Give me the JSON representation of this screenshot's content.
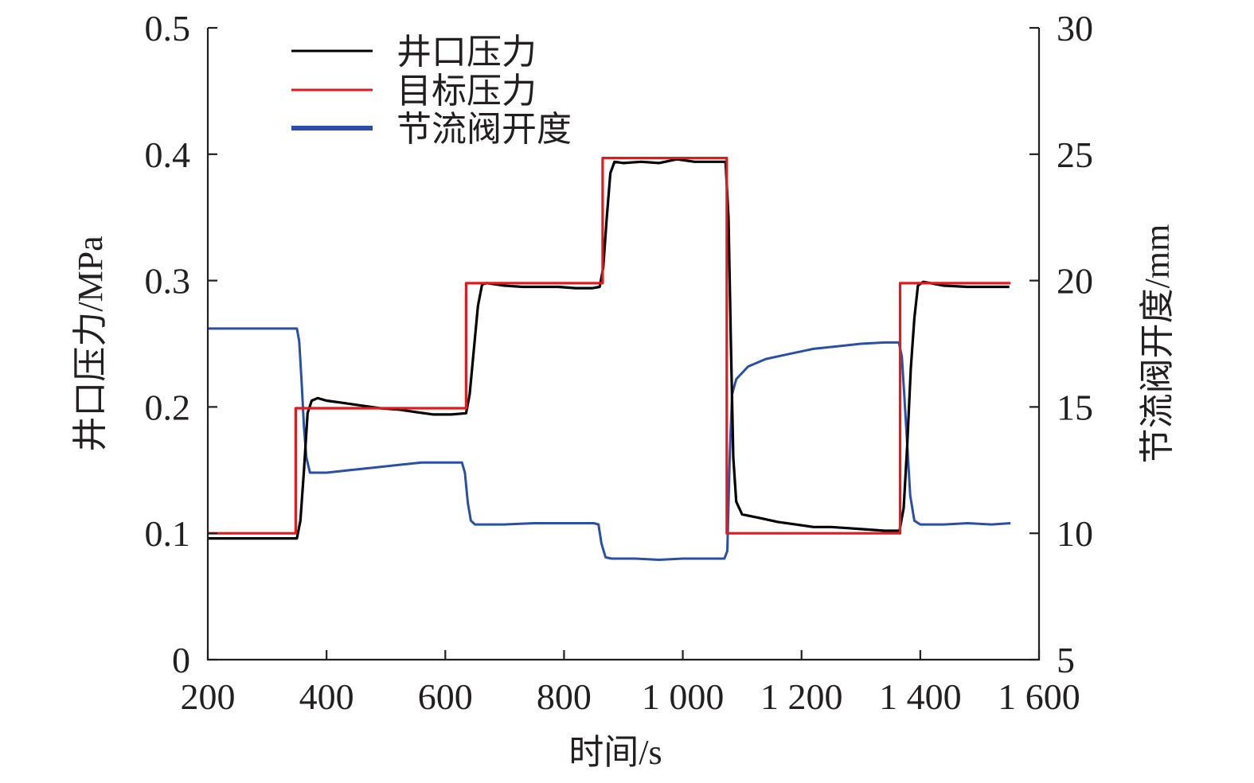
{
  "chart_data": {
    "type": "line",
    "x": {
      "label": "时间/s",
      "range": [
        200,
        1600
      ],
      "ticks": [
        200,
        400,
        600,
        800,
        1000,
        1200,
        1400,
        1600
      ],
      "tick_labels": [
        "200",
        "400",
        "600",
        "800",
        "1 000",
        "1 200",
        "1 400",
        "1 600"
      ]
    },
    "y_left": {
      "label": "井口压力/MPa",
      "range": [
        0,
        0.5
      ],
      "ticks": [
        0,
        0.1,
        0.2,
        0.3,
        0.4,
        0.5
      ],
      "tick_labels": [
        "0",
        "0.1",
        "0.2",
        "0.3",
        "0.4",
        "0.5"
      ]
    },
    "y_right": {
      "label": "节流阀开度/mm",
      "range": [
        5,
        30
      ],
      "ticks": [
        5,
        10,
        15,
        20,
        25,
        30
      ],
      "tick_labels": [
        "5",
        "10",
        "15",
        "20",
        "25",
        "30"
      ]
    },
    "grid": false,
    "legend_position": "top-left",
    "series": [
      {
        "name": "井口压力",
        "axis": "left",
        "color": "#000000",
        "points": [
          [
            200,
            0.096
          ],
          [
            350,
            0.096
          ],
          [
            356,
            0.11
          ],
          [
            362,
            0.15
          ],
          [
            368,
            0.195
          ],
          [
            375,
            0.205
          ],
          [
            385,
            0.207
          ],
          [
            400,
            0.205
          ],
          [
            430,
            0.203
          ],
          [
            460,
            0.201
          ],
          [
            490,
            0.199
          ],
          [
            520,
            0.198
          ],
          [
            550,
            0.196
          ],
          [
            580,
            0.194
          ],
          [
            610,
            0.194
          ],
          [
            635,
            0.195
          ],
          [
            641,
            0.21
          ],
          [
            648,
            0.245
          ],
          [
            655,
            0.28
          ],
          [
            662,
            0.297
          ],
          [
            670,
            0.298
          ],
          [
            700,
            0.296
          ],
          [
            730,
            0.295
          ],
          [
            760,
            0.295
          ],
          [
            790,
            0.295
          ],
          [
            820,
            0.294
          ],
          [
            848,
            0.294
          ],
          [
            860,
            0.295
          ],
          [
            866,
            0.31
          ],
          [
            872,
            0.35
          ],
          [
            878,
            0.385
          ],
          [
            885,
            0.394
          ],
          [
            900,
            0.393
          ],
          [
            930,
            0.394
          ],
          [
            960,
            0.393
          ],
          [
            990,
            0.396
          ],
          [
            1020,
            0.394
          ],
          [
            1050,
            0.394
          ],
          [
            1072,
            0.394
          ],
          [
            1077,
            0.35
          ],
          [
            1081,
            0.25
          ],
          [
            1085,
            0.16
          ],
          [
            1090,
            0.125
          ],
          [
            1100,
            0.115
          ],
          [
            1130,
            0.112
          ],
          [
            1160,
            0.109
          ],
          [
            1190,
            0.107
          ],
          [
            1220,
            0.105
          ],
          [
            1250,
            0.105
          ],
          [
            1280,
            0.104
          ],
          [
            1310,
            0.103
          ],
          [
            1340,
            0.102
          ],
          [
            1365,
            0.102
          ],
          [
            1372,
            0.12
          ],
          [
            1378,
            0.17
          ],
          [
            1384,
            0.23
          ],
          [
            1390,
            0.27
          ],
          [
            1396,
            0.296
          ],
          [
            1405,
            0.299
          ],
          [
            1440,
            0.296
          ],
          [
            1480,
            0.295
          ],
          [
            1520,
            0.295
          ],
          [
            1550,
            0.295
          ]
        ]
      },
      {
        "name": "目标压力",
        "axis": "left",
        "color": "#e3191c",
        "points": [
          [
            200,
            0.1
          ],
          [
            348,
            0.1
          ],
          [
            348,
            0.199
          ],
          [
            635,
            0.199
          ],
          [
            635,
            0.298
          ],
          [
            865,
            0.298
          ],
          [
            865,
            0.397
          ],
          [
            1074,
            0.397
          ],
          [
            1074,
            0.1
          ],
          [
            1366,
            0.1
          ],
          [
            1366,
            0.298
          ],
          [
            1552,
            0.298
          ]
        ]
      },
      {
        "name": "节流阀开度",
        "axis": "right",
        "color": "#2a4fa8",
        "points": [
          [
            200,
            18.1
          ],
          [
            350,
            18.1
          ],
          [
            354,
            17.6
          ],
          [
            358,
            16.0
          ],
          [
            362,
            14.2
          ],
          [
            366,
            13.0
          ],
          [
            372,
            12.4
          ],
          [
            400,
            12.4
          ],
          [
            440,
            12.5
          ],
          [
            480,
            12.6
          ],
          [
            520,
            12.7
          ],
          [
            560,
            12.8
          ],
          [
            600,
            12.8
          ],
          [
            628,
            12.8
          ],
          [
            633,
            12.4
          ],
          [
            638,
            11.2
          ],
          [
            643,
            10.5
          ],
          [
            650,
            10.35
          ],
          [
            700,
            10.35
          ],
          [
            750,
            10.4
          ],
          [
            800,
            10.4
          ],
          [
            850,
            10.4
          ],
          [
            858,
            10.35
          ],
          [
            863,
            9.6
          ],
          [
            870,
            9.05
          ],
          [
            880,
            9.0
          ],
          [
            920,
            9.0
          ],
          [
            960,
            8.95
          ],
          [
            1000,
            9.0
          ],
          [
            1040,
            9.0
          ],
          [
            1070,
            9.0
          ],
          [
            1075,
            9.3
          ],
          [
            1079,
            13.0
          ],
          [
            1083,
            15.5
          ],
          [
            1090,
            16.1
          ],
          [
            1110,
            16.6
          ],
          [
            1140,
            16.9
          ],
          [
            1180,
            17.1
          ],
          [
            1220,
            17.3
          ],
          [
            1260,
            17.4
          ],
          [
            1300,
            17.5
          ],
          [
            1340,
            17.55
          ],
          [
            1364,
            17.55
          ],
          [
            1369,
            17.0
          ],
          [
            1373,
            15.5
          ],
          [
            1378,
            13.5
          ],
          [
            1383,
            11.5
          ],
          [
            1390,
            10.5
          ],
          [
            1400,
            10.35
          ],
          [
            1440,
            10.35
          ],
          [
            1480,
            10.4
          ],
          [
            1520,
            10.35
          ],
          [
            1552,
            10.4
          ]
        ]
      }
    ]
  }
}
